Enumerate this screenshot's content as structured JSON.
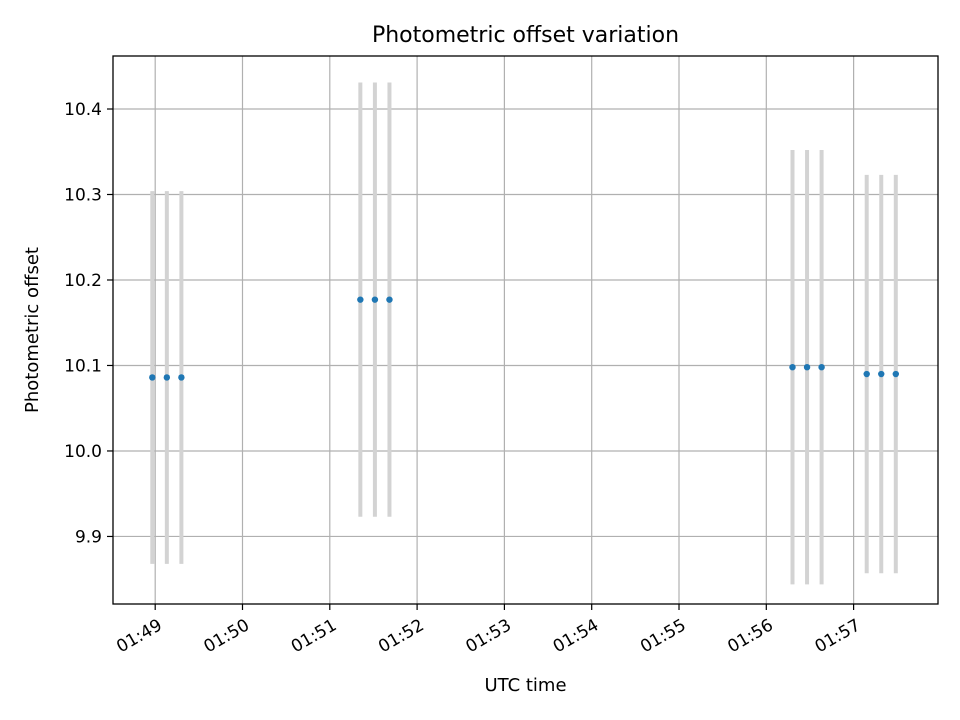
{
  "chart_data": {
    "type": "scatter",
    "title": "Photometric offset variation",
    "xlabel": "UTC time",
    "ylabel": "Photometric offset",
    "x_ticks": [
      "01:49",
      "01:50",
      "01:51",
      "01:52",
      "01:53",
      "01:54",
      "01:55",
      "01:56",
      "01:57"
    ],
    "y_ticks": [
      9.9,
      10.0,
      10.1,
      10.2,
      10.3,
      10.4
    ],
    "xlim": [
      "01:48:31",
      "01:57:58"
    ],
    "ylim": [
      9.821,
      10.462
    ],
    "grid": true,
    "legend": "none",
    "points": [
      {
        "x": "01:48:58",
        "y": 10.086,
        "err": 0.218
      },
      {
        "x": "01:49:08",
        "y": 10.086,
        "err": 0.218
      },
      {
        "x": "01:49:18",
        "y": 10.086,
        "err": 0.218
      },
      {
        "x": "01:51:21",
        "y": 10.177,
        "err": 0.254
      },
      {
        "x": "01:51:31",
        "y": 10.177,
        "err": 0.254
      },
      {
        "x": "01:51:41",
        "y": 10.177,
        "err": 0.254
      },
      {
        "x": "01:56:18",
        "y": 10.098,
        "err": 0.254
      },
      {
        "x": "01:56:28",
        "y": 10.098,
        "err": 0.254
      },
      {
        "x": "01:56:38",
        "y": 10.098,
        "err": 0.254
      },
      {
        "x": "01:57:09",
        "y": 10.09,
        "err": 0.233
      },
      {
        "x": "01:57:19",
        "y": 10.09,
        "err": 0.233
      },
      {
        "x": "01:57:29",
        "y": 10.09,
        "err": 0.233
      }
    ],
    "colors": {
      "marker": "#1f77b4",
      "errorbar": "#d3d3d3",
      "grid": "#b0b0b0",
      "axes": "#000000"
    }
  }
}
